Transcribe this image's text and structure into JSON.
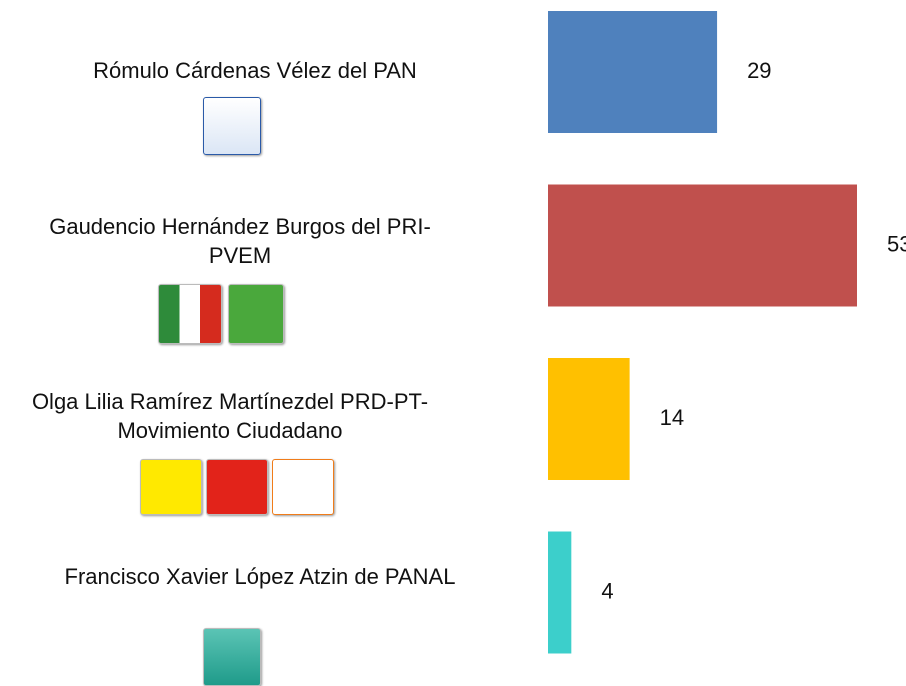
{
  "chart_data": {
    "type": "bar",
    "orientation": "horizontal",
    "categories": [
      "Rómulo Cárdenas Vélez del PAN",
      "Gaudencio Hernández Burgos  del PRI-PVEM",
      "Olga Lilia Ramírez Martínezdel PRD-PT-Movimiento Ciudadano",
      "Francisco Xavier López Atzin de PANAL"
    ],
    "values": [
      29,
      53,
      14,
      4
    ],
    "colors": [
      "#4f81bd",
      "#c0504d",
      "#ffc000",
      "#3ccfcb"
    ]
  }
}
